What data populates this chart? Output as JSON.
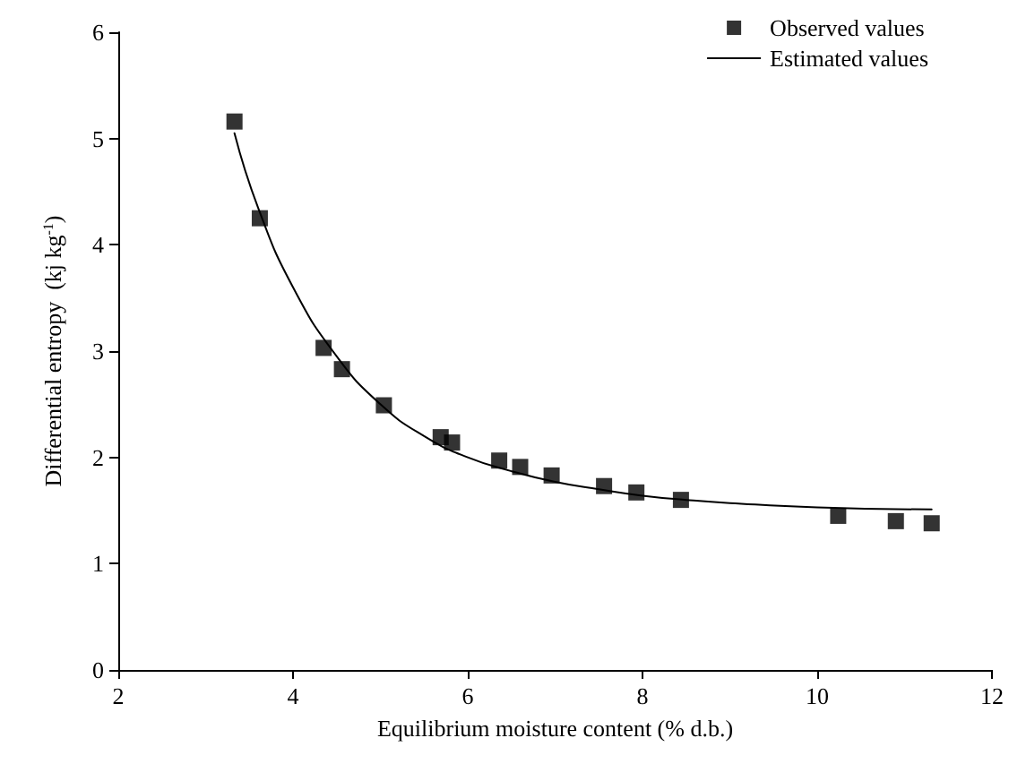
{
  "chart_data": {
    "type": "scatter",
    "xlabel": "Equilibrium moisture content (% d.b.)",
    "ylabel": "Differential entropy  (kj kg$^{-1}$)",
    "xlim": [
      2,
      12
    ],
    "xticks": [
      2,
      4,
      6,
      8,
      10,
      12
    ],
    "ylim": [
      0,
      6
    ],
    "yticks": [
      0,
      1,
      2,
      3,
      4,
      5,
      6
    ],
    "grid": false,
    "legend": "top right",
    "series": [
      {
        "name": "Observed values",
        "marker": "square",
        "color": "#000000",
        "x": [
          3.33,
          3.62,
          4.35,
          4.56,
          5.04,
          5.69,
          5.82,
          6.36,
          6.6,
          6.96,
          7.56,
          7.93,
          8.44,
          10.24,
          10.9,
          11.31
        ],
        "values": [
          5.16,
          4.25,
          3.03,
          2.83,
          2.49,
          2.19,
          2.14,
          1.97,
          1.91,
          1.83,
          1.73,
          1.67,
          1.6,
          1.45,
          1.4,
          1.38
        ]
      },
      {
        "name": "Estimated values",
        "type": "line",
        "marker": "none",
        "line_style": "solid",
        "color": "#000000",
        "x": [
          3.33,
          3.6,
          4.0,
          4.5,
          5.0,
          5.5,
          6.0,
          6.5,
          7.0,
          7.5,
          8.0,
          8.5,
          9.0,
          10.0,
          11.31
        ],
        "values": [
          5.05,
          4.35,
          3.6,
          2.95,
          2.5,
          2.2,
          2.0,
          1.87,
          1.77,
          1.7,
          1.64,
          1.6,
          1.57,
          1.53,
          1.51
        ]
      }
    ]
  }
}
